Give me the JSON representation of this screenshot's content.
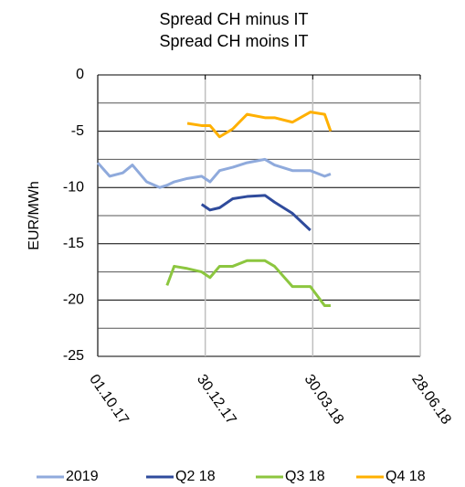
{
  "chart_data": {
    "type": "line",
    "title": "Spread CH minus IT",
    "subtitle": "Spread CH moins IT",
    "y_label": "EUR/MWh",
    "x": [
      "2017-10-01",
      "2017-10-11",
      "2017-10-22",
      "2017-10-30",
      "2017-11-11",
      "2017-11-22",
      "2017-11-28",
      "2017-12-04",
      "2017-12-15",
      "2017-12-27",
      "2018-01-03",
      "2018-01-11",
      "2018-01-22",
      "2018-02-03",
      "2018-02-18",
      "2018-02-26",
      "2018-03-13",
      "2018-03-28",
      "2018-04-09",
      "2018-04-14"
    ],
    "series": [
      {
        "name": "2019",
        "color": "#8faadc",
        "values": [
          -7.8,
          -9,
          -8.7,
          -8,
          -9.5,
          -10,
          -9.8,
          -9.5,
          -9.2,
          -9,
          -9.5,
          -8.5,
          -8.2,
          -7.8,
          -7.5,
          -8,
          -8.5,
          -8.5,
          -9,
          -8.8
        ]
      },
      {
        "name": "Q2 18",
        "color": "#2f4b9c",
        "values": [
          null,
          null,
          null,
          null,
          null,
          null,
          null,
          null,
          null,
          -11.5,
          -12,
          -11.8,
          -11,
          -10.8,
          -10.7,
          -11.3,
          -12.3,
          -13.8,
          null,
          null
        ]
      },
      {
        "name": "Q3 18",
        "color": "#8cc63f",
        "values": [
          null,
          null,
          null,
          null,
          null,
          null,
          -18.7,
          -17,
          -17.2,
          -17.5,
          -18,
          -17,
          -17,
          -16.5,
          -16.5,
          -17,
          -18.8,
          -18.8,
          -20.5,
          -20.5
        ]
      },
      {
        "name": "Q4 18",
        "color": "#ffb000",
        "values": [
          null,
          null,
          null,
          null,
          null,
          null,
          null,
          null,
          -4.3,
          -4.5,
          -4.5,
          -5.5,
          -4.8,
          -3.5,
          -3.8,
          -3.8,
          -4.2,
          -3.3,
          -3.5,
          -5
        ]
      }
    ],
    "xlim": [
      "2017-10-01",
      "2018-06-28"
    ],
    "xticks": [
      {
        "value": "2017-10-01",
        "label": "01.10.17"
      },
      {
        "value": "2017-12-30",
        "label": "30.12.17"
      },
      {
        "value": "2018-03-30",
        "label": "30.03.18"
      },
      {
        "value": "2018-06-28",
        "label": "28.06.18"
      }
    ],
    "ylim": [
      -25,
      0
    ],
    "yticks": [
      0,
      -5,
      -10,
      -15,
      -20,
      -25
    ],
    "yticks_minor": [
      -2.5,
      -7.5,
      -12.5,
      -17.5,
      -22.5
    ],
    "grid": true,
    "legend": "bottom"
  }
}
